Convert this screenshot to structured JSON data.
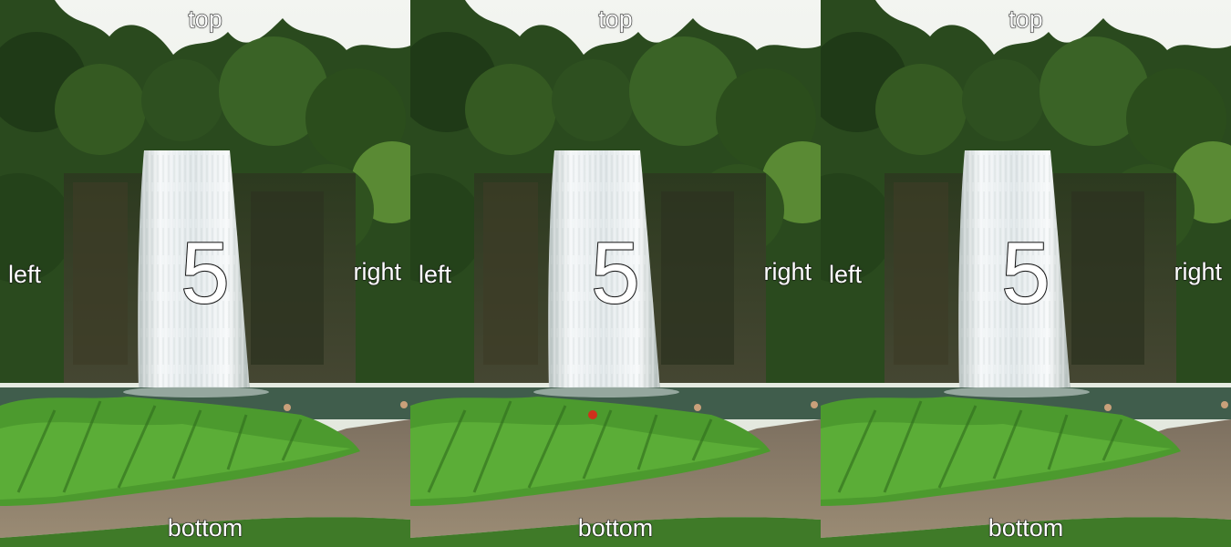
{
  "panels": [
    {
      "top": "top",
      "bottom": "bottom",
      "left": "left",
      "right": "right",
      "center": "5"
    },
    {
      "top": "top",
      "bottom": "bottom",
      "left": "left",
      "right": "right",
      "center": "5"
    },
    {
      "top": "top",
      "bottom": "bottom",
      "left": "left",
      "right": "right",
      "center": "5"
    }
  ],
  "colors": {
    "sky": "#e9ede6",
    "canopy_dark": "#1f3a17",
    "canopy_light": "#4e7a2c",
    "rock": "#3b3a26",
    "water_fall": "#eef2f4",
    "pool": "#3d5a4a",
    "plants": "#4c9a2e",
    "path": "#8a7a63",
    "grass": "#3f7a28",
    "label_text": "#ffffff"
  }
}
